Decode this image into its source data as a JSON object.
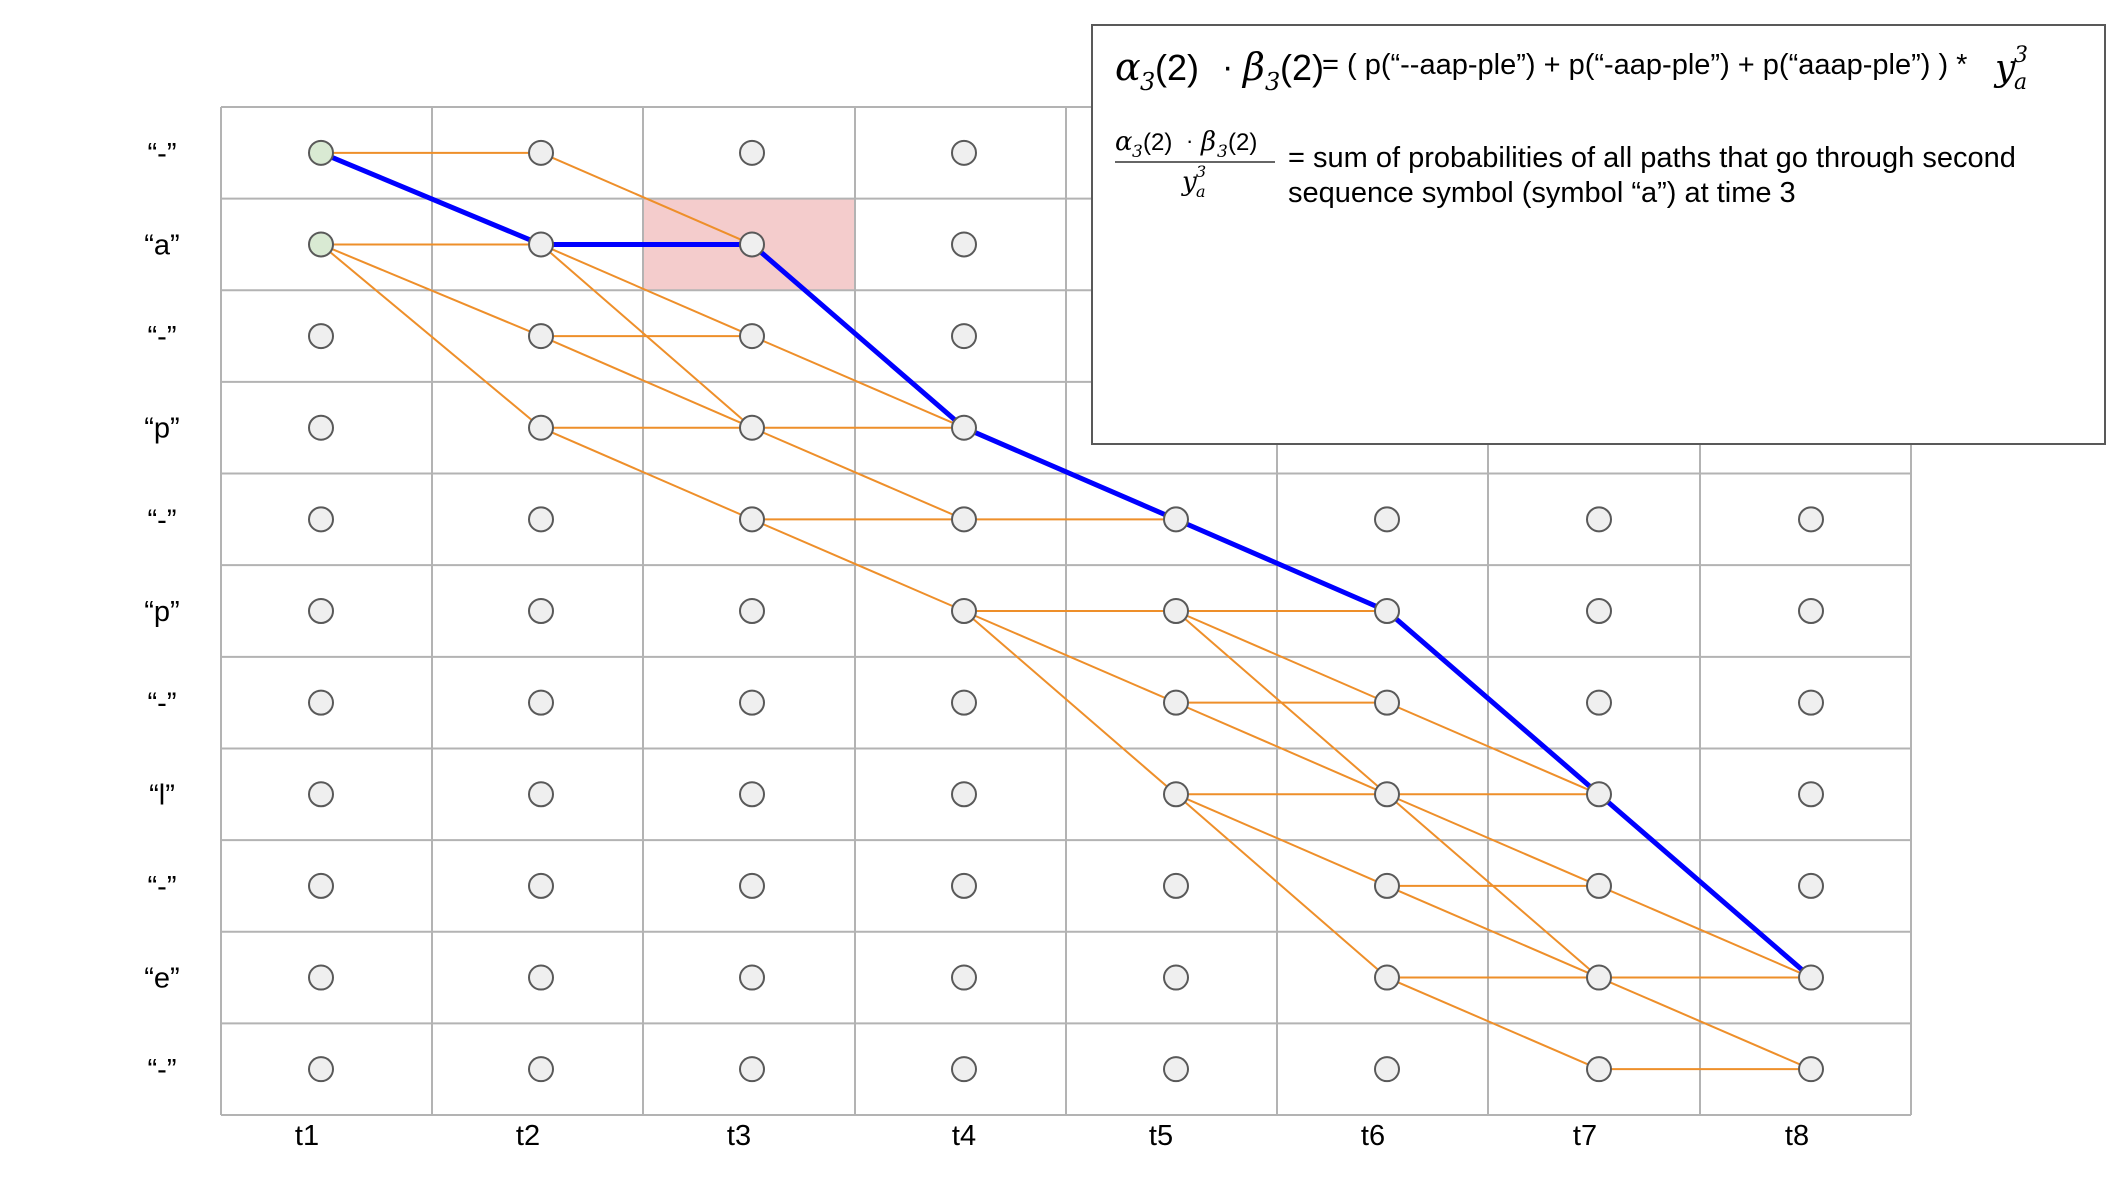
{
  "row_labels": [
    "“-”",
    "“a”",
    "“-”",
    "“p”",
    "“-”",
    "“p”",
    "“-”",
    "“l”",
    "“-”",
    "“e”",
    "“-”"
  ],
  "time_labels": [
    "t1",
    "t2",
    "t3",
    "t4",
    "t5",
    "t6",
    "t7",
    "t8"
  ],
  "colors": {
    "grid": "#b3b3b3",
    "node_fill": "#efefef",
    "node_start_fill": "#d9ead3",
    "node_stroke": "#595959",
    "edge": "#ee8f2a",
    "path": "#0000ff",
    "highlight": "#f4cccc"
  },
  "highlight_cell": {
    "row": 1,
    "col": 2
  },
  "start_nodes": [
    [
      0,
      0
    ],
    [
      0,
      1
    ]
  ],
  "edges": [
    [
      0,
      0,
      1,
      0
    ],
    [
      0,
      1,
      1,
      1
    ],
    [
      0,
      1,
      1,
      2
    ],
    [
      0,
      1,
      1,
      3
    ],
    [
      1,
      0,
      2,
      1
    ],
    [
      1,
      1,
      2,
      1
    ],
    [
      1,
      1,
      2,
      2
    ],
    [
      1,
      1,
      2,
      3
    ],
    [
      1,
      2,
      2,
      2
    ],
    [
      1,
      2,
      2,
      3
    ],
    [
      1,
      3,
      2,
      3
    ],
    [
      1,
      3,
      2,
      4
    ],
    [
      2,
      1,
      3,
      3
    ],
    [
      2,
      2,
      3,
      3
    ],
    [
      2,
      3,
      3,
      3
    ],
    [
      2,
      3,
      3,
      4
    ],
    [
      2,
      4,
      3,
      4
    ],
    [
      2,
      4,
      3,
      5
    ],
    [
      3,
      3,
      4,
      4
    ],
    [
      3,
      4,
      4,
      4
    ],
    [
      3,
      5,
      4,
      5
    ],
    [
      3,
      5,
      4,
      6
    ],
    [
      3,
      5,
      4,
      7
    ],
    [
      4,
      4,
      5,
      5
    ],
    [
      4,
      5,
      5,
      5
    ],
    [
      4,
      5,
      5,
      6
    ],
    [
      4,
      5,
      5,
      7
    ],
    [
      4,
      6,
      5,
      6
    ],
    [
      4,
      6,
      5,
      7
    ],
    [
      4,
      7,
      5,
      7
    ],
    [
      4,
      7,
      5,
      8
    ],
    [
      4,
      7,
      5,
      9
    ],
    [
      5,
      5,
      6,
      7
    ],
    [
      5,
      6,
      6,
      7
    ],
    [
      5,
      7,
      6,
      7
    ],
    [
      5,
      7,
      6,
      8
    ],
    [
      5,
      7,
      6,
      9
    ],
    [
      5,
      8,
      6,
      8
    ],
    [
      5,
      8,
      6,
      9
    ],
    [
      5,
      9,
      6,
      9
    ],
    [
      5,
      9,
      6,
      10
    ],
    [
      6,
      7,
      7,
      9
    ],
    [
      6,
      8,
      7,
      9
    ],
    [
      6,
      9,
      7,
      9
    ],
    [
      6,
      9,
      7,
      10
    ],
    [
      6,
      10,
      7,
      10
    ]
  ],
  "path_nodes": [
    [
      0,
      0
    ],
    [
      1,
      1
    ],
    [
      2,
      1
    ],
    [
      3,
      3
    ],
    [
      4,
      4
    ],
    [
      5,
      5
    ],
    [
      6,
      7
    ],
    [
      7,
      9
    ]
  ],
  "formula": {
    "alpha": "α",
    "alpha_sub": "3",
    "alpha_arg": "(2)",
    "dot": "·",
    "beta": "β",
    "beta_sub": "3",
    "beta_arg": "(2)",
    "equation_text": "= ( p(“--aap-ple”) + p(“-aap-ple”) + p(“aaap-ple”) ) *",
    "y": "y",
    "y_sup": "3",
    "y_sub": "a",
    "description_line1": "= sum of probabilities of all paths that go through second",
    "description_line2": "sequence symbol (symbol “a”) at time 3"
  }
}
